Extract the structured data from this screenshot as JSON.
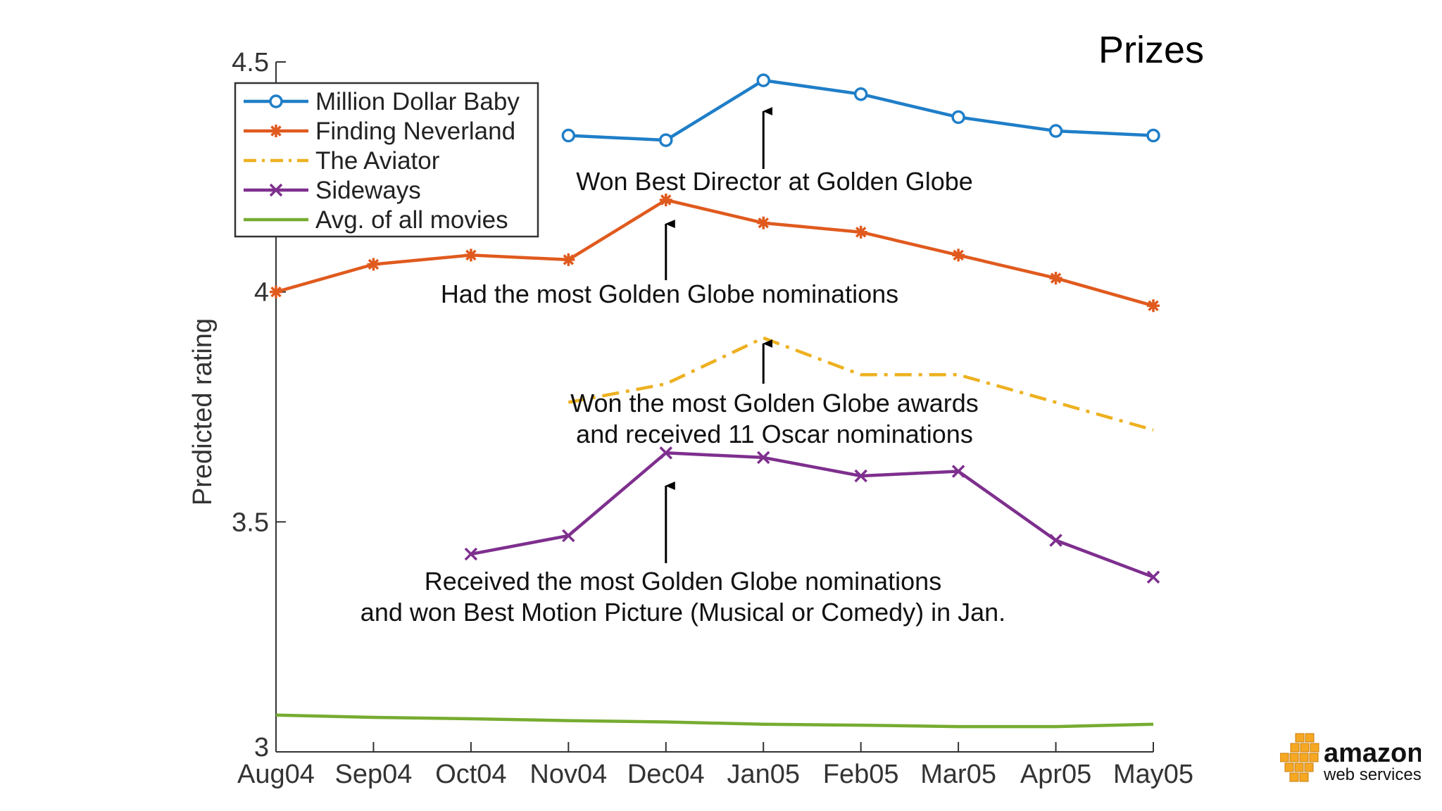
{
  "slide": {
    "title": "Prizes"
  },
  "brand": {
    "word1": "amazon",
    "word2": "web services",
    "logo_color": "#F7A823"
  },
  "chart_data": {
    "type": "line",
    "x": [
      "Aug04",
      "Sep04",
      "Oct04",
      "Nov04",
      "Dec04",
      "Jan05",
      "Feb05",
      "Mar05",
      "Apr05",
      "May05"
    ],
    "ylabel": "Predicted rating",
    "ylim": [
      3,
      4.5
    ],
    "yticks": [
      "3",
      "3.5",
      "4",
      "4.5"
    ],
    "legend_position": "top-left",
    "series": [
      {
        "name": "Million Dollar Baby",
        "color": "#1f7ec8",
        "marker": "circle",
        "dash": "solid",
        "values": [
          null,
          null,
          null,
          4.34,
          4.33,
          4.46,
          4.43,
          4.38,
          4.35,
          4.34
        ]
      },
      {
        "name": "Finding Neverland",
        "color": "#e05a1e",
        "marker": "star",
        "dash": "solid",
        "values": [
          4.0,
          4.06,
          4.08,
          4.07,
          4.2,
          4.15,
          4.13,
          4.08,
          4.03,
          3.97
        ]
      },
      {
        "name": "The Aviator",
        "color": "#edb120",
        "marker": "none",
        "dash": "dashdot",
        "values": [
          null,
          null,
          null,
          3.76,
          3.8,
          3.9,
          3.82,
          3.82,
          3.76,
          3.7
        ]
      },
      {
        "name": "Sideways",
        "color": "#7e2f8e",
        "marker": "x",
        "dash": "solid",
        "values": [
          null,
          null,
          3.43,
          3.47,
          3.65,
          3.64,
          3.6,
          3.61,
          3.46,
          3.38
        ]
      },
      {
        "name": "Avg. of all movies",
        "color": "#77ac30",
        "marker": "none",
        "dash": "solid",
        "values": [
          3.08,
          3.075,
          3.072,
          3.068,
          3.065,
          3.06,
          3.058,
          3.055,
          3.055,
          3.06
        ]
      }
    ],
    "annotations": [
      {
        "lines": [
          "Won Best Director at Golden Globe"
        ],
        "arrow_x": "Jan05"
      },
      {
        "lines": [
          "Had the most Golden Globe nominations"
        ],
        "arrow_x": "Dec04"
      },
      {
        "lines": [
          "Won the most Golden Globe awards",
          "and received 11 Oscar nominations"
        ],
        "arrow_x": "Jan05"
      },
      {
        "lines": [
          "Received the most Golden Globe nominations",
          "and won Best Motion Picture (Musical or Comedy) in Jan."
        ],
        "arrow_x": "Dec04"
      }
    ]
  }
}
